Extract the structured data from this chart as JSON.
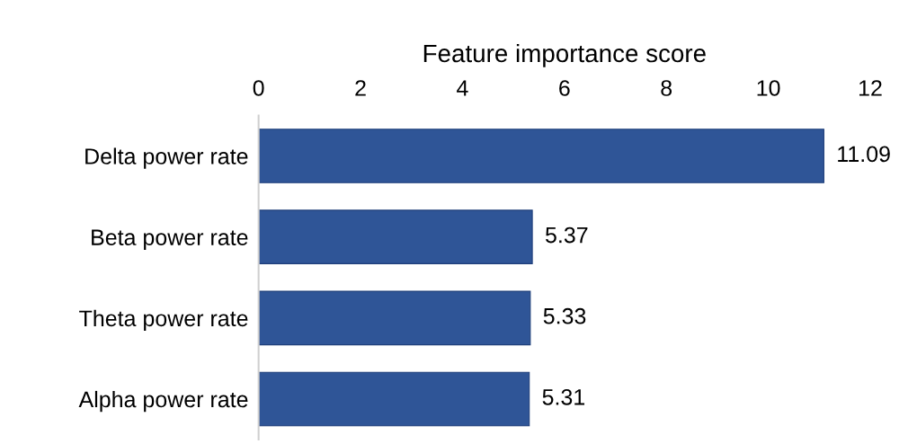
{
  "chart_data": {
    "type": "bar",
    "orientation": "horizontal",
    "xlabel": "Feature importance score",
    "categories": [
      "Delta power rate",
      "Beta power rate",
      "Theta power rate",
      "Alpha power rate"
    ],
    "values": [
      11.09,
      5.37,
      5.33,
      5.31
    ],
    "color": "#2f5597",
    "xlim": [
      0,
      12
    ],
    "xticks": [
      0,
      2,
      4,
      6,
      8,
      10,
      12
    ],
    "data_labels": true,
    "grid": false,
    "legend": false
  }
}
